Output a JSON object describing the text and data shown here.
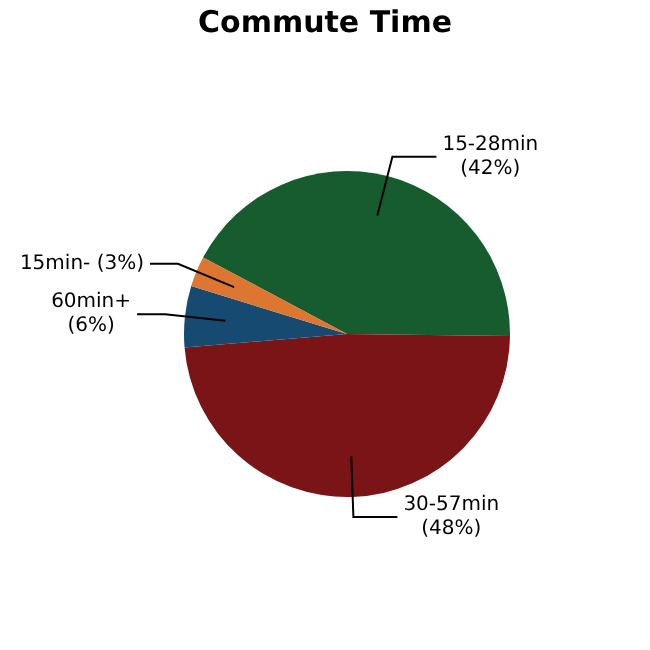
{
  "chart_data": {
    "type": "pie",
    "title": "Commute Time",
    "categories": [
      "15-28min",
      "30-57min",
      "60min+",
      "15min-"
    ],
    "values": [
      42,
      48,
      6,
      3
    ],
    "value_labels": [
      "(42%)",
      "(48%)",
      "(6%)",
      "(3%)"
    ],
    "colors": [
      "#175c2e",
      "#7b1416",
      "#174a70",
      "#dd7630"
    ],
    "legend": false
  }
}
